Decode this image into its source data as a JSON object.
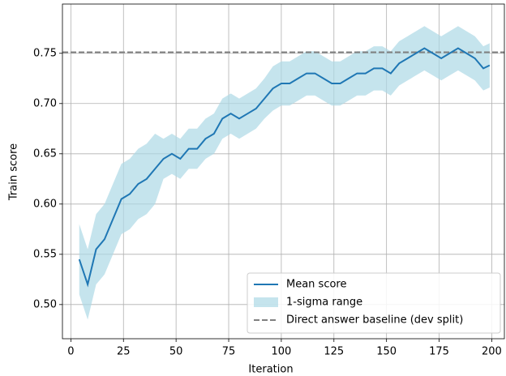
{
  "chart_data": {
    "type": "line",
    "xlabel": "Iteration",
    "ylabel": "Train score",
    "x": [
      4,
      8,
      12,
      16,
      20,
      24,
      28,
      32,
      36,
      40,
      44,
      48,
      52,
      56,
      60,
      64,
      68,
      72,
      76,
      80,
      84,
      88,
      92,
      96,
      100,
      104,
      108,
      112,
      116,
      120,
      124,
      128,
      132,
      136,
      140,
      144,
      148,
      152,
      156,
      160,
      164,
      168,
      172,
      176,
      180,
      184,
      188,
      192,
      196,
      199
    ],
    "series": [
      {
        "name": "Mean score",
        "color": "#1f77b4",
        "values": [
          0.545,
          0.52,
          0.555,
          0.565,
          0.585,
          0.605,
          0.61,
          0.62,
          0.625,
          0.635,
          0.645,
          0.65,
          0.645,
          0.655,
          0.655,
          0.665,
          0.67,
          0.685,
          0.69,
          0.685,
          0.69,
          0.695,
          0.705,
          0.715,
          0.72,
          0.72,
          0.725,
          0.73,
          0.73,
          0.725,
          0.72,
          0.72,
          0.725,
          0.73,
          0.73,
          0.735,
          0.735,
          0.73,
          0.74,
          0.745,
          0.75,
          0.755,
          0.75,
          0.745,
          0.75,
          0.755,
          0.75,
          0.745,
          0.735,
          0.738
        ]
      }
    ],
    "band": {
      "name": "1-sigma range",
      "color": "#add8e6",
      "lower": [
        0.51,
        0.485,
        0.52,
        0.53,
        0.55,
        0.57,
        0.575,
        0.585,
        0.59,
        0.6,
        0.625,
        0.63,
        0.625,
        0.635,
        0.635,
        0.645,
        0.65,
        0.665,
        0.67,
        0.665,
        0.67,
        0.675,
        0.685,
        0.693,
        0.698,
        0.698,
        0.703,
        0.708,
        0.708,
        0.703,
        0.698,
        0.698,
        0.703,
        0.708,
        0.708,
        0.713,
        0.713,
        0.708,
        0.718,
        0.723,
        0.728,
        0.733,
        0.728,
        0.723,
        0.728,
        0.733,
        0.728,
        0.723,
        0.713,
        0.716
      ],
      "upper": [
        0.58,
        0.555,
        0.59,
        0.6,
        0.62,
        0.64,
        0.645,
        0.655,
        0.66,
        0.67,
        0.665,
        0.67,
        0.665,
        0.675,
        0.675,
        0.685,
        0.69,
        0.705,
        0.71,
        0.705,
        0.71,
        0.715,
        0.725,
        0.737,
        0.742,
        0.742,
        0.747,
        0.752,
        0.752,
        0.747,
        0.742,
        0.742,
        0.747,
        0.752,
        0.752,
        0.757,
        0.757,
        0.752,
        0.762,
        0.767,
        0.772,
        0.777,
        0.772,
        0.767,
        0.772,
        0.777,
        0.772,
        0.767,
        0.757,
        0.76
      ]
    },
    "hline": {
      "name": "Direct answer baseline (dev split)",
      "value": 0.751,
      "color": "#808080"
    },
    "xlim": [
      -4,
      206
    ],
    "ylim": [
      0.466,
      0.799
    ],
    "xticks": [
      0,
      25,
      50,
      75,
      100,
      125,
      150,
      175,
      200
    ],
    "yticks": [
      {
        "value": 0.5,
        "label": "0.50"
      },
      {
        "value": 0.55,
        "label": "0.55"
      },
      {
        "value": 0.6,
        "label": "0.60"
      },
      {
        "value": 0.65,
        "label": "0.65"
      },
      {
        "value": 0.7,
        "label": "0.70"
      },
      {
        "value": 0.75,
        "label": "0.75"
      }
    ],
    "grid": true,
    "legend": "lower right"
  }
}
